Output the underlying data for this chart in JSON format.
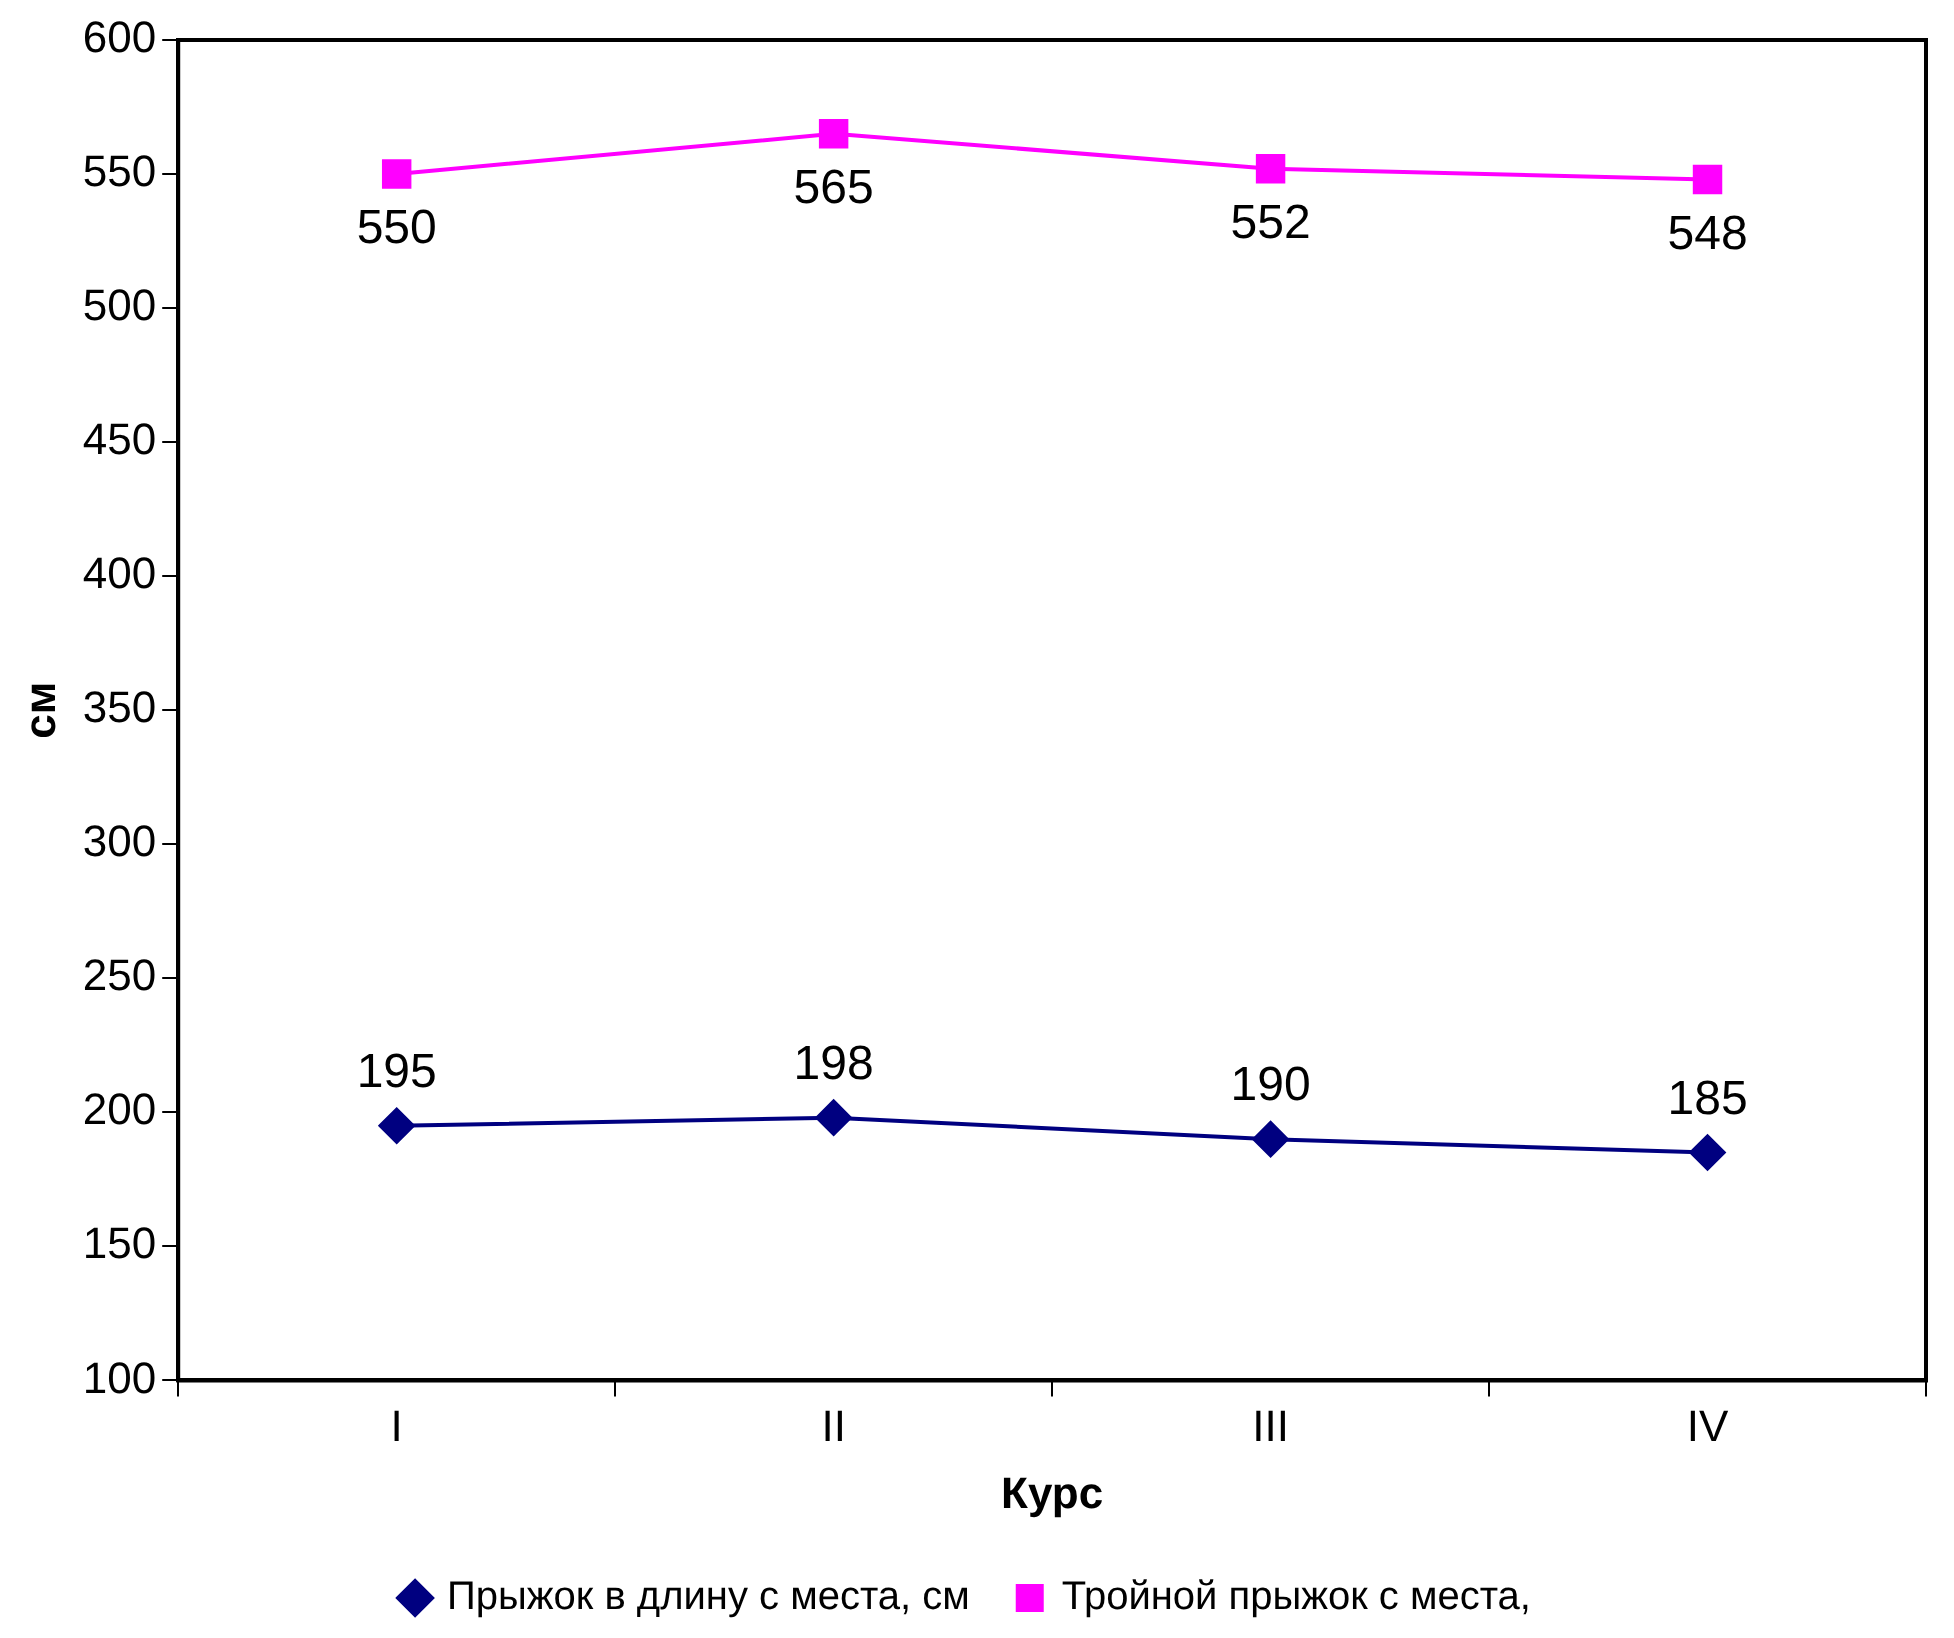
{
  "chart_data": {
    "type": "line",
    "xlabel": "Курс",
    "ylabel": "см",
    "categories": [
      "I",
      "II",
      "III",
      "IV"
    ],
    "series": [
      {
        "name": "Прыжок в длину с места, см",
        "color": "#000080",
        "marker": "diamond",
        "values": [
          195,
          198,
          190,
          185
        ]
      },
      {
        "name": "Тройной прыжок с места,",
        "color": "#ff00ff",
        "marker": "square",
        "values": [
          550,
          565,
          552,
          548
        ]
      }
    ],
    "ylim": [
      100,
      600
    ],
    "yticks": [
      100,
      150,
      200,
      250,
      300,
      350,
      400,
      450,
      500,
      550,
      600
    ],
    "grid": false,
    "legend": "bottom",
    "data_labels": true,
    "line_style": "solid"
  }
}
